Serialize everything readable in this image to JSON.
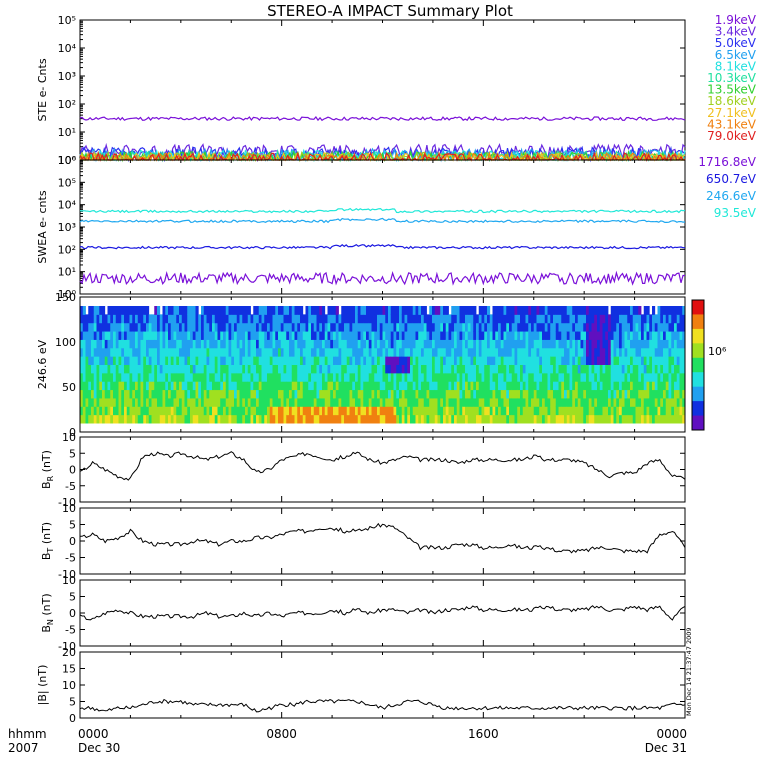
{
  "title": "STEREO-A IMPACT Summary Plot",
  "stamp": "Mon Dec 14 21:37:47 2009",
  "time_axis": {
    "row_label_1": "hhmm",
    "row_label_2": "2007",
    "ticks": [
      {
        "hour": 0,
        "label": "0000",
        "date": "Dec 30"
      },
      {
        "hour": 8,
        "label": "0800",
        "date": ""
      },
      {
        "hour": 16,
        "label": "1600",
        "date": ""
      },
      {
        "hour": 24,
        "label": "0000",
        "date": "Dec 31"
      }
    ]
  },
  "colors": {
    "ste": [
      "#7a10d8",
      "#6a28e0",
      "#2a30f0",
      "#20a0f0",
      "#20e0e0",
      "#20e0a0",
      "#30d030",
      "#a0d020",
      "#f0c020",
      "#f08010",
      "#e02020"
    ],
    "swea": [
      "#7a10d8",
      "#1a18e0",
      "#20a8f0",
      "#20e8d8"
    ]
  },
  "chart_data": [
    {
      "type": "line",
      "panel": "ste",
      "ylabel": "STE e- Cnts",
      "yscale": "log",
      "ylim": [
        1,
        100000
      ],
      "yticks": [
        "10⁰",
        "10¹",
        "10²",
        "10³",
        "10⁴",
        "10⁵"
      ],
      "legend": [
        "1.9keV",
        "3.4keV",
        "5.0keV",
        "6.5keV",
        "8.1keV",
        "10.3keV",
        "13.5keV",
        "18.6keV",
        "27.1keV",
        "43.1keV",
        "79.0keV"
      ],
      "x": [
        0,
        24
      ],
      "series": [
        {
          "name": "1.9keV",
          "level": 30
        },
        {
          "name": "3.4keV",
          "level": 2.0
        },
        {
          "name": "5.0keV",
          "level": 1.6
        },
        {
          "name": "6.5keV",
          "level": 1.4
        },
        {
          "name": "8.1keV",
          "level": 1.25
        },
        {
          "name": "10.3keV",
          "level": 1.15
        },
        {
          "name": "13.5keV",
          "level": 1.1
        },
        {
          "name": "18.6keV",
          "level": 1.05
        },
        {
          "name": "27.1keV",
          "level": 1.02
        },
        {
          "name": "43.1keV",
          "level": 1.01
        },
        {
          "name": "79.0keV",
          "level": 1.0
        }
      ]
    },
    {
      "type": "line",
      "panel": "swea",
      "ylabel": "SWEA e- cnts",
      "yscale": "log",
      "ylim": [
        1,
        1000000
      ],
      "yticks": [
        "10⁰",
        "10¹",
        "10²",
        "10³",
        "10⁴",
        "10⁵",
        "10⁶"
      ],
      "legend": [
        "1716.8eV",
        "650.7eV",
        "246.6eV",
        "93.5eV"
      ],
      "x": [
        0,
        24
      ],
      "series": [
        {
          "name": "1716.8eV",
          "level": 5
        },
        {
          "name": "650.7eV",
          "level": 120
        },
        {
          "name": "246.6eV",
          "level": 1800
        },
        {
          "name": "93.5eV",
          "level": 5000
        }
      ]
    },
    {
      "type": "heatmap",
      "panel": "pad",
      "ylabel": "246.6 eV",
      "ylim": [
        0,
        180
      ],
      "yticks": [
        "0",
        "50",
        "100",
        "150"
      ],
      "colorbar_label": "10⁶"
    },
    {
      "type": "line",
      "panel": "br",
      "ylabel": "B",
      "ylabel_sub": "R",
      "ylabel_unit": " (nT)",
      "ylim": [
        -10,
        10
      ],
      "yticks": [
        "-10",
        "-5",
        "0",
        "5",
        "10"
      ],
      "hours": [
        0,
        0.5,
        1,
        1.5,
        2,
        2.5,
        3,
        3.5,
        4,
        4.5,
        5,
        5.5,
        6,
        6.5,
        7,
        7.5,
        8,
        8.5,
        9,
        9.5,
        10,
        10.5,
        11,
        11.5,
        12,
        12.5,
        13,
        13.5,
        14,
        14.5,
        15,
        15.5,
        16,
        16.5,
        17,
        17.5,
        18,
        18.5,
        19,
        19.5,
        20,
        20.5,
        21,
        21.5,
        22,
        22.5,
        23,
        23.5,
        24
      ],
      "values": [
        -1,
        2,
        0,
        -2,
        -3,
        4,
        5,
        4,
        5,
        4,
        3,
        4,
        5,
        3,
        -1,
        0,
        3,
        4,
        5,
        4,
        3,
        4,
        5,
        3,
        2,
        3,
        4,
        3,
        3,
        3,
        2,
        3,
        3,
        3,
        3,
        3,
        4,
        3,
        3,
        3,
        2,
        0,
        -2,
        -1,
        -1,
        2,
        3,
        -2,
        -3
      ]
    },
    {
      "type": "line",
      "panel": "bt",
      "ylabel": "B",
      "ylabel_sub": "T",
      "ylabel_unit": " (nT)",
      "ylim": [
        -10,
        10
      ],
      "yticks": [
        "-10",
        "-5",
        "0",
        "5",
        "10"
      ],
      "hours": [
        0,
        0.5,
        1,
        1.5,
        2,
        2.5,
        3,
        3.5,
        4,
        4.5,
        5,
        5.5,
        6,
        6.5,
        7,
        7.5,
        8,
        8.5,
        9,
        9.5,
        10,
        10.5,
        11,
        11.5,
        12,
        12.5,
        13,
        13.5,
        14,
        14.5,
        15,
        15.5,
        16,
        16.5,
        17,
        17.5,
        18,
        18.5,
        19,
        19.5,
        20,
        20.5,
        21,
        21.5,
        22,
        22.5,
        23,
        23.5,
        24
      ],
      "values": [
        1,
        2,
        0,
        1,
        3,
        0,
        -1,
        -1,
        -1,
        0,
        0,
        -1,
        0,
        0,
        1,
        1,
        2,
        3,
        3,
        4,
        4,
        3,
        3,
        4,
        5,
        4,
        1,
        -2,
        -2,
        -2,
        -1,
        -1,
        -2,
        -2,
        -1,
        -2,
        -2,
        -2,
        -3,
        -3,
        -3,
        -2,
        -2,
        -3,
        -3,
        -3,
        2,
        3,
        -2
      ]
    },
    {
      "type": "line",
      "panel": "bn",
      "ylabel": "B",
      "ylabel_sub": "N",
      "ylabel_unit": " (nT)",
      "ylim": [
        -10,
        10
      ],
      "yticks": [
        "-10",
        "-5",
        "0",
        "5",
        "10"
      ],
      "hours": [
        0,
        0.5,
        1,
        1.5,
        2,
        2.5,
        3,
        3.5,
        4,
        4.5,
        5,
        5.5,
        6,
        6.5,
        7,
        7.5,
        8,
        8.5,
        9,
        9.5,
        10,
        10.5,
        11,
        11.5,
        12,
        12.5,
        13,
        13.5,
        14,
        14.5,
        15,
        15.5,
        16,
        16.5,
        17,
        17.5,
        18,
        18.5,
        19,
        19.5,
        20,
        20.5,
        21,
        21.5,
        22,
        22.5,
        23,
        23.5,
        24
      ],
      "values": [
        -1,
        -2,
        0,
        1,
        0,
        -1,
        -1,
        -1,
        -1,
        -1,
        0,
        -1,
        -1,
        0,
        -1,
        0,
        -1,
        0,
        0,
        0,
        1,
        0,
        1,
        0,
        1,
        1,
        0,
        1,
        0,
        1,
        1,
        2,
        1,
        1,
        1,
        1,
        1,
        2,
        1,
        1,
        1,
        2,
        1,
        1,
        2,
        1,
        2,
        -2,
        2
      ]
    },
    {
      "type": "line",
      "panel": "bmag",
      "ylabel": "|B| (nT)",
      "ylim": [
        0,
        20
      ],
      "yticks": [
        "0",
        "5",
        "10",
        "15",
        "20"
      ],
      "hours": [
        0,
        0.5,
        1,
        1.5,
        2,
        2.5,
        3,
        3.5,
        4,
        4.5,
        5,
        5.5,
        6,
        6.5,
        7,
        7.5,
        8,
        8.5,
        9,
        9.5,
        10,
        10.5,
        11,
        11.5,
        12,
        12.5,
        13,
        13.5,
        14,
        14.5,
        15,
        15.5,
        16,
        16.5,
        17,
        17.5,
        18,
        18.5,
        19,
        19.5,
        20,
        20.5,
        21,
        21.5,
        22,
        22.5,
        23,
        23.5,
        24
      ],
      "values": [
        3,
        3,
        2,
        3,
        3,
        4,
        5,
        5,
        5,
        4,
        4,
        4,
        4,
        4,
        2,
        3,
        4,
        4,
        5,
        5,
        5,
        5,
        5,
        4,
        3,
        4,
        5,
        5,
        4,
        3,
        3,
        3,
        3,
        3,
        3,
        3,
        3,
        3,
        3,
        3,
        3,
        3,
        3,
        3,
        3,
        3,
        3,
        4,
        4
      ]
    }
  ]
}
